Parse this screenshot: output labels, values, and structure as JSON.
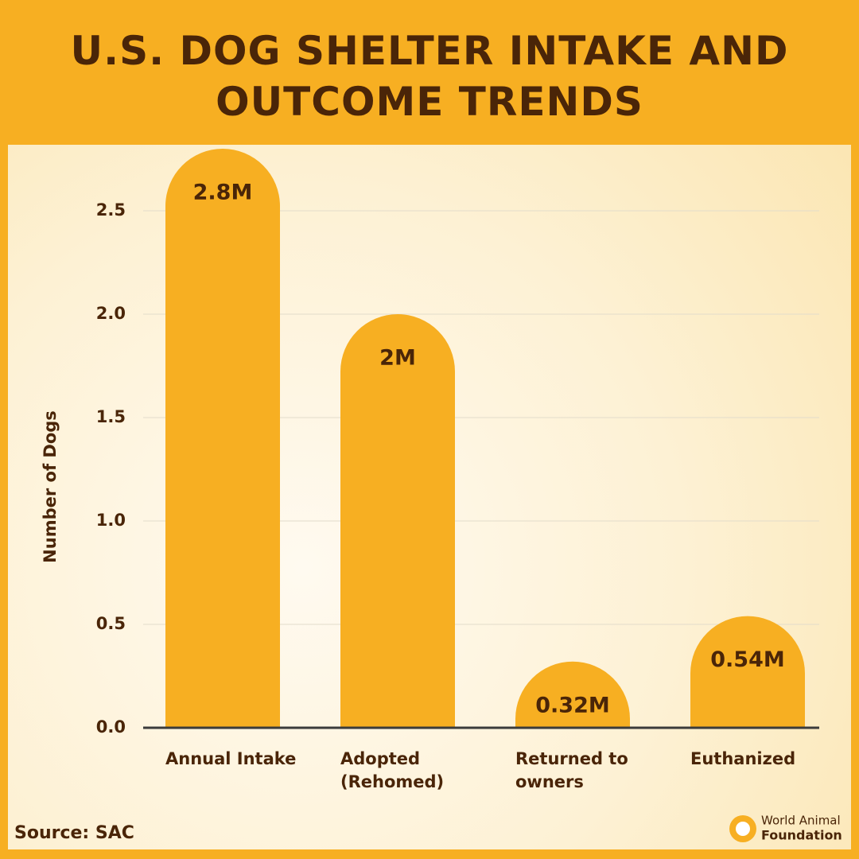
{
  "chart_data": {
    "type": "bar",
    "title": "U.S. DOG SHELTER INTAKE AND OUTCOME TRENDS",
    "y_label": "Number of Dogs",
    "categories": [
      "Annual Intake",
      "Adopted (Rehomed)",
      "Returned to owners",
      "Euthanized"
    ],
    "values": [
      2.8,
      2,
      0.32,
      0.54
    ],
    "value_labels": [
      "2.8M",
      "2M",
      "0.32M",
      "0.54M"
    ],
    "color": "#f7af22",
    "ylim": [
      0,
      2.8
    ],
    "yticks": [
      {
        "value": 0,
        "label": "0.0"
      },
      0.5,
      {
        "value": 1,
        "label": "1.0"
      },
      1.5,
      {
        "value": 2,
        "label": "2.0"
      },
      2.5
    ],
    "grid": true,
    "source": "Source: SAC",
    "logo_line1": "World Animal",
    "logo_line2": "Foundation"
  }
}
